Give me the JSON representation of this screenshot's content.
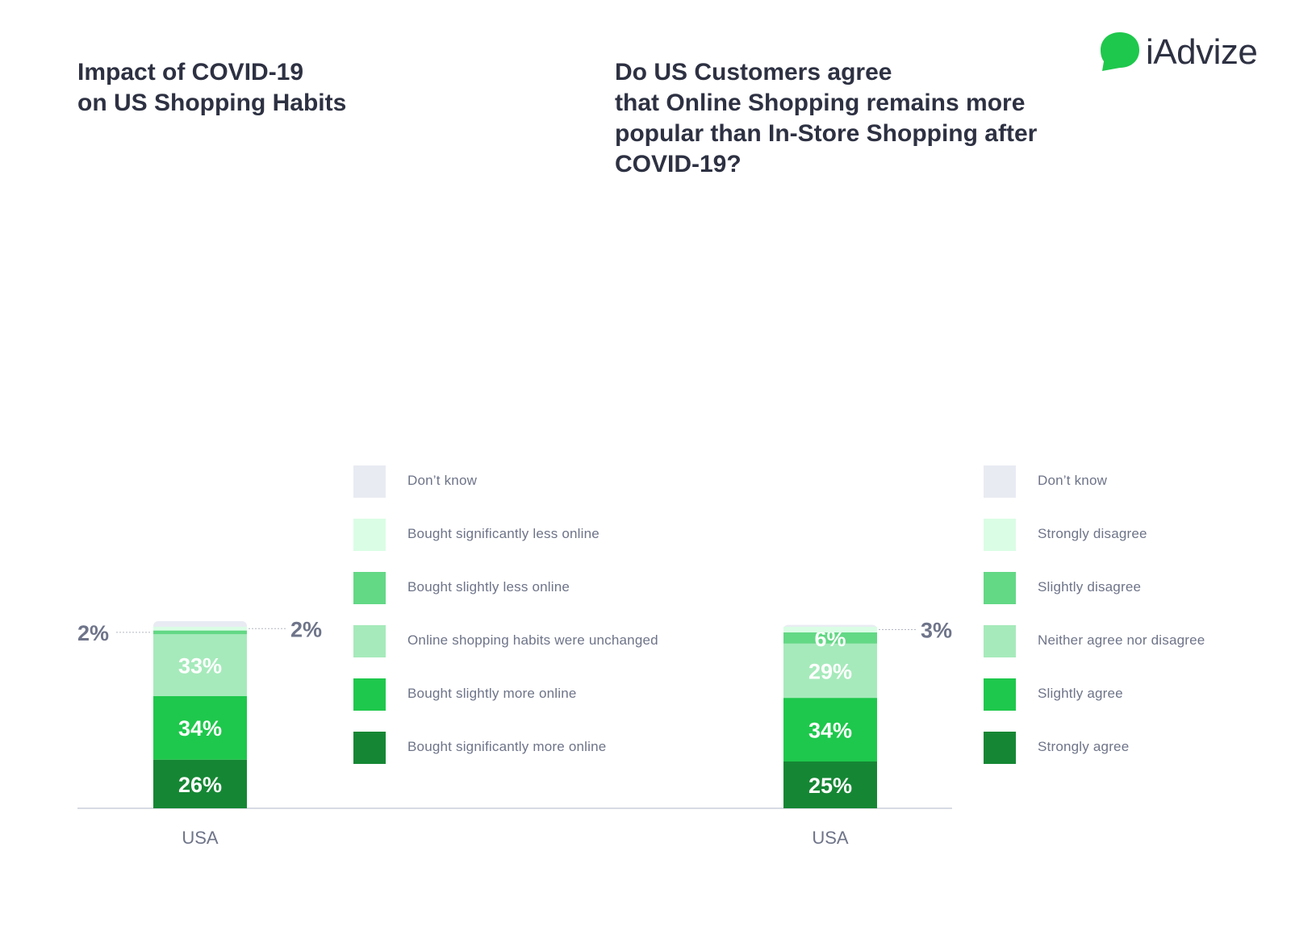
{
  "logo": {
    "text": "iAdvize",
    "color": "#1ec84c"
  },
  "chart_data": [
    {
      "type": "bar",
      "stacked": true,
      "title_lines": [
        "Impact of COVID-19",
        "on US Shopping Habits"
      ],
      "categories": [
        "USA"
      ],
      "series": [
        {
          "name": "Bought significantly more online",
          "values": [
            26
          ],
          "color": "#158734",
          "label": "26%"
        },
        {
          "name": "Bought slightly more online",
          "values": [
            34
          ],
          "color": "#1ec84c",
          "label": "34%"
        },
        {
          "name": "Online shopping habits were unchanged",
          "values": [
            33
          ],
          "color": "#a6eabb",
          "label": "33%"
        },
        {
          "name": "Bought slightly less online",
          "values": [
            2
          ],
          "color": "#63d885",
          "label": "2%",
          "label_side": "left"
        },
        {
          "name": "Bought significantly less online",
          "values": [
            2
          ],
          "color": "#dafde5",
          "label": "2%",
          "label_side": "right"
        },
        {
          "name": "Don’t know",
          "values": [
            3
          ],
          "color": "#e9ebf3",
          "label": ""
        }
      ],
      "legend_order": [
        "Don’t know",
        "Bought significantly less online",
        "Bought slightly less online",
        "Online shopping habits were unchanged",
        "Bought slightly more online",
        "Bought significantly more online"
      ],
      "legend_position": "right",
      "grid": false
    },
    {
      "type": "bar",
      "stacked": true,
      "title_lines": [
        "Do US Customers agree",
        "that Online Shopping remains more",
        "popular than In-Store Shopping after",
        "COVID-19?"
      ],
      "categories": [
        "USA"
      ],
      "series": [
        {
          "name": "Strongly agree",
          "values": [
            25
          ],
          "color": "#158734",
          "label": "25%"
        },
        {
          "name": "Slightly agree",
          "values": [
            34
          ],
          "color": "#1ec84c",
          "label": "34%"
        },
        {
          "name": "Neither agree nor disagree",
          "values": [
            29
          ],
          "color": "#a6eabb",
          "label": "29%"
        },
        {
          "name": "Slightly disagree",
          "values": [
            6
          ],
          "color": "#63d885",
          "label": "6%"
        },
        {
          "name": "Strongly disagree",
          "values": [
            3
          ],
          "color": "#dafde5",
          "label": "3%",
          "label_side": "right"
        },
        {
          "name": "Don’t know",
          "values": [
            1
          ],
          "color": "#e9ebf3",
          "label": ""
        }
      ],
      "legend_order": [
        "Don’t know",
        "Strongly disagree",
        "Slightly disagree",
        "Neither agree nor disagree",
        "Slightly agree",
        "Strongly agree"
      ],
      "legend_position": "right",
      "grid": false
    }
  ]
}
